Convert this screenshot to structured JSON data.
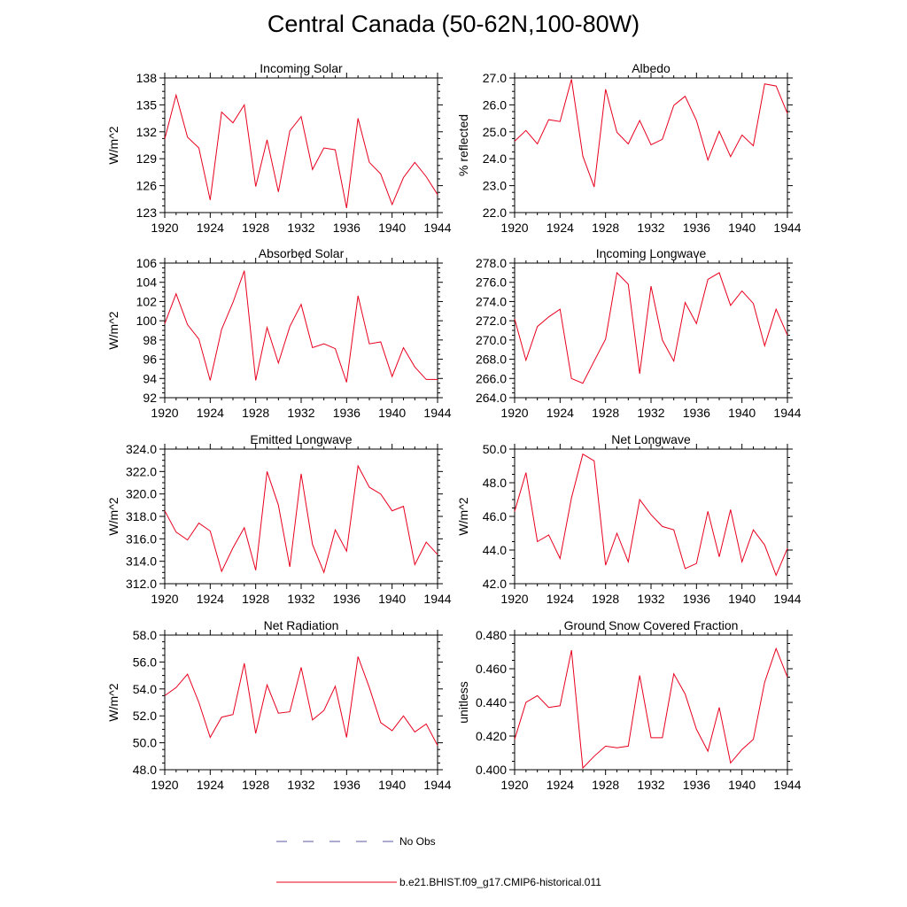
{
  "title": "Central Canada (50-62N,100-80W)",
  "colors": {
    "model": "#e8001e",
    "obs": "#5a5aa0",
    "axis": "#000000"
  },
  "legend": {
    "obs_label": "No Obs",
    "model_label": "b.e21.BHIST.f09_g17.CMIP6-historical.011"
  },
  "chart_data": [
    {
      "type": "line",
      "title": "Incoming Solar",
      "ylabel": "W/m^2",
      "xlim": [
        1920,
        1944
      ],
      "ylim": [
        123,
        138
      ],
      "yticks": [
        123,
        126,
        129,
        132,
        135,
        138
      ],
      "ytick_labels": [
        "123",
        "126",
        "129",
        "132",
        "135",
        "138"
      ],
      "xticks": [
        1920,
        1924,
        1928,
        1932,
        1936,
        1940,
        1944
      ],
      "xtick_labels": [
        "1920",
        "1924",
        "1928",
        "1932",
        "1936",
        "1940",
        "1944"
      ],
      "x": [
        1920,
        1921,
        1922,
        1923,
        1924,
        1925,
        1926,
        1927,
        1928,
        1929,
        1930,
        1931,
        1932,
        1933,
        1934,
        1935,
        1936,
        1937,
        1938,
        1939,
        1940,
        1941,
        1942,
        1943,
        1944
      ],
      "series": [
        {
          "values": [
            131.2,
            136.1,
            131.4,
            130.2,
            124.4,
            134.2,
            133.0,
            135.0,
            125.9,
            131.1,
            125.3,
            132.1,
            133.7,
            127.8,
            130.2,
            130.0,
            123.5,
            133.5,
            128.6,
            127.3,
            123.9,
            126.9,
            128.6,
            127.0,
            125.0
          ]
        }
      ]
    },
    {
      "type": "line",
      "title": "Albedo",
      "ylabel": "% reflected",
      "xlim": [
        1920,
        1944
      ],
      "ylim": [
        22,
        27
      ],
      "yticks": [
        22,
        23,
        24,
        25,
        26,
        27
      ],
      "ytick_labels": [
        "22.0",
        "23.0",
        "24.0",
        "25.0",
        "26.0",
        "27.0"
      ],
      "xticks": [
        1920,
        1924,
        1928,
        1932,
        1936,
        1940,
        1944
      ],
      "xtick_labels": [
        "1920",
        "1924",
        "1928",
        "1932",
        "1936",
        "1940",
        "1944"
      ],
      "x": [
        1920,
        1921,
        1922,
        1923,
        1924,
        1925,
        1926,
        1927,
        1928,
        1929,
        1930,
        1931,
        1932,
        1933,
        1934,
        1935,
        1936,
        1937,
        1938,
        1939,
        1940,
        1941,
        1942,
        1943,
        1944
      ],
      "series": [
        {
          "values": [
            24.65,
            25.05,
            24.55,
            25.45,
            25.38,
            26.95,
            24.1,
            22.95,
            26.58,
            24.98,
            24.55,
            25.42,
            24.52,
            24.72,
            25.98,
            26.32,
            25.42,
            23.95,
            25.02,
            24.08,
            24.88,
            24.48,
            26.78,
            26.7,
            25.68
          ]
        }
      ]
    },
    {
      "type": "line",
      "title": "Absorbed Solar",
      "ylabel": "W/m^2",
      "xlim": [
        1920,
        1944
      ],
      "ylim": [
        92,
        106
      ],
      "yticks": [
        92,
        94,
        96,
        98,
        100,
        102,
        104,
        106
      ],
      "ytick_labels": [
        "92",
        "94",
        "96",
        "98",
        "100",
        "102",
        "104",
        "106"
      ],
      "xticks": [
        1920,
        1924,
        1928,
        1932,
        1936,
        1940,
        1944
      ],
      "xtick_labels": [
        "1920",
        "1924",
        "1928",
        "1932",
        "1936",
        "1940",
        "1944"
      ],
      "x": [
        1920,
        1921,
        1922,
        1923,
        1924,
        1925,
        1926,
        1927,
        1928,
        1929,
        1930,
        1931,
        1932,
        1933,
        1934,
        1935,
        1936,
        1937,
        1938,
        1939,
        1940,
        1941,
        1942,
        1943,
        1944
      ],
      "series": [
        {
          "values": [
            99.7,
            102.8,
            99.6,
            98.1,
            93.8,
            99.1,
            101.9,
            105.2,
            93.8,
            99.3,
            95.6,
            99.4,
            101.7,
            97.2,
            97.6,
            97.1,
            93.6,
            102.6,
            97.6,
            97.8,
            94.2,
            97.2,
            95.2,
            93.9,
            93.9
          ]
        }
      ]
    },
    {
      "type": "line",
      "title": "Incoming Longwave",
      "ylabel": "",
      "xlim": [
        1920,
        1944
      ],
      "ylim": [
        264,
        278
      ],
      "yticks": [
        264,
        266,
        268,
        270,
        272,
        274,
        276,
        278
      ],
      "ytick_labels": [
        "264.0",
        "266.0",
        "268.0",
        "270.0",
        "272.0",
        "274.0",
        "276.0",
        "278.0"
      ],
      "xticks": [
        1920,
        1924,
        1928,
        1932,
        1936,
        1940,
        1944
      ],
      "xtick_labels": [
        "1920",
        "1924",
        "1928",
        "1932",
        "1936",
        "1940",
        "1944"
      ],
      "x": [
        1920,
        1921,
        1922,
        1923,
        1924,
        1925,
        1926,
        1927,
        1928,
        1929,
        1930,
        1931,
        1932,
        1933,
        1934,
        1935,
        1936,
        1937,
        1938,
        1939,
        1940,
        1941,
        1942,
        1943,
        1944
      ],
      "series": [
        {
          "values": [
            272.2,
            267.9,
            271.4,
            272.4,
            273.2,
            266.0,
            265.5,
            267.8,
            270.1,
            277.0,
            275.8,
            266.5,
            275.6,
            270.0,
            267.8,
            273.9,
            271.7,
            276.3,
            277.0,
            273.6,
            275.1,
            273.8,
            269.4,
            273.2,
            270.5
          ]
        }
      ]
    },
    {
      "type": "line",
      "title": "Emitted Longwave",
      "ylabel": "W/m^2",
      "xlim": [
        1920,
        1944
      ],
      "ylim": [
        312,
        324
      ],
      "yticks": [
        312,
        314,
        316,
        318,
        320,
        322,
        324
      ],
      "ytick_labels": [
        "312.0",
        "314.0",
        "316.0",
        "318.0",
        "320.0",
        "322.0",
        "324.0"
      ],
      "xticks": [
        1920,
        1924,
        1928,
        1932,
        1936,
        1940,
        1944
      ],
      "xtick_labels": [
        "1920",
        "1924",
        "1928",
        "1932",
        "1936",
        "1940",
        "1944"
      ],
      "x": [
        1920,
        1921,
        1922,
        1923,
        1924,
        1925,
        1926,
        1927,
        1928,
        1929,
        1930,
        1931,
        1932,
        1933,
        1934,
        1935,
        1936,
        1937,
        1938,
        1939,
        1940,
        1941,
        1942,
        1943,
        1944
      ],
      "series": [
        {
          "values": [
            318.5,
            316.6,
            315.9,
            317.4,
            316.7,
            313.1,
            315.2,
            317.0,
            313.2,
            322.0,
            319.0,
            313.5,
            321.8,
            315.5,
            313.0,
            316.8,
            314.9,
            322.5,
            320.6,
            320.0,
            318.5,
            318.9,
            313.7,
            315.7,
            314.6
          ]
        }
      ]
    },
    {
      "type": "line",
      "title": "Net Longwave",
      "ylabel": "W/m^2",
      "xlim": [
        1920,
        1944
      ],
      "ylim": [
        42,
        50
      ],
      "yticks": [
        42,
        44,
        46,
        48,
        50
      ],
      "ytick_labels": [
        "42.0",
        "44.0",
        "46.0",
        "48.0",
        "50.0"
      ],
      "xticks": [
        1920,
        1924,
        1928,
        1932,
        1936,
        1940,
        1944
      ],
      "xtick_labels": [
        "1920",
        "1924",
        "1928",
        "1932",
        "1936",
        "1940",
        "1944"
      ],
      "x": [
        1920,
        1921,
        1922,
        1923,
        1924,
        1925,
        1926,
        1927,
        1928,
        1929,
        1930,
        1931,
        1932,
        1933,
        1934,
        1935,
        1936,
        1937,
        1938,
        1939,
        1940,
        1941,
        1942,
        1943,
        1944
      ],
      "series": [
        {
          "values": [
            46.3,
            48.6,
            44.5,
            44.9,
            43.5,
            47.1,
            49.7,
            49.3,
            43.1,
            45.0,
            43.3,
            47.0,
            46.1,
            45.4,
            45.2,
            42.9,
            43.2,
            46.3,
            43.6,
            46.4,
            43.3,
            45.2,
            44.3,
            42.5,
            44.1
          ]
        }
      ]
    },
    {
      "type": "line",
      "title": "Net Radiation",
      "ylabel": "W/m^2",
      "xlim": [
        1920,
        1944
      ],
      "ylim": [
        48,
        58
      ],
      "yticks": [
        48,
        50,
        52,
        54,
        56,
        58
      ],
      "ytick_labels": [
        "48.0",
        "50.0",
        "52.0",
        "54.0",
        "56.0",
        "58.0"
      ],
      "xticks": [
        1920,
        1924,
        1928,
        1932,
        1936,
        1940,
        1944
      ],
      "xtick_labels": [
        "1920",
        "1924",
        "1928",
        "1932",
        "1936",
        "1940",
        "1944"
      ],
      "x": [
        1920,
        1921,
        1922,
        1923,
        1924,
        1925,
        1926,
        1927,
        1928,
        1929,
        1930,
        1931,
        1932,
        1933,
        1934,
        1935,
        1936,
        1937,
        1938,
        1939,
        1940,
        1941,
        1942,
        1943,
        1944
      ],
      "series": [
        {
          "values": [
            53.5,
            54.1,
            55.1,
            53.0,
            50.4,
            51.9,
            52.1,
            55.9,
            50.7,
            54.3,
            52.2,
            52.3,
            55.6,
            51.7,
            52.4,
            54.2,
            50.4,
            56.4,
            54.1,
            51.5,
            50.9,
            52.0,
            50.8,
            51.4,
            49.8
          ]
        }
      ]
    },
    {
      "type": "line",
      "title": "Ground Snow Covered Fraction",
      "ylabel": "unitless",
      "xlim": [
        1920,
        1944
      ],
      "ylim": [
        0.4,
        0.48
      ],
      "yticks": [
        0.4,
        0.42,
        0.44,
        0.46,
        0.48
      ],
      "ytick_labels": [
        "0.400",
        "0.420",
        "0.440",
        "0.460",
        "0.480"
      ],
      "xticks": [
        1920,
        1924,
        1928,
        1932,
        1936,
        1940,
        1944
      ],
      "xtick_labels": [
        "1920",
        "1924",
        "1928",
        "1932",
        "1936",
        "1940",
        "1944"
      ],
      "x": [
        1920,
        1921,
        1922,
        1923,
        1924,
        1925,
        1926,
        1927,
        1928,
        1929,
        1930,
        1931,
        1932,
        1933,
        1934,
        1935,
        1936,
        1937,
        1938,
        1939,
        1940,
        1941,
        1942,
        1943,
        1944
      ],
      "series": [
        {
          "values": [
            0.418,
            0.44,
            0.444,
            0.437,
            0.438,
            0.471,
            0.401,
            0.408,
            0.414,
            0.413,
            0.414,
            0.456,
            0.419,
            0.419,
            0.457,
            0.445,
            0.424,
            0.411,
            0.437,
            0.404,
            0.412,
            0.418,
            0.452,
            0.472,
            0.455
          ]
        }
      ]
    }
  ]
}
